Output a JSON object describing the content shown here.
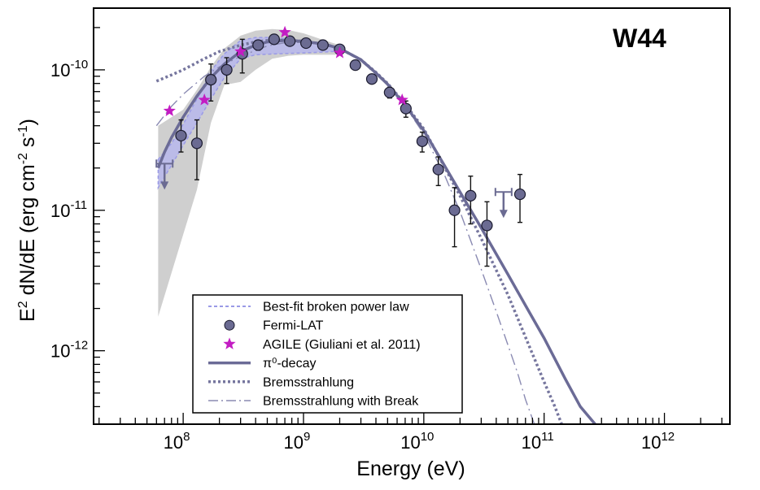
{
  "chart_data": {
    "type": "scatter",
    "title": "W44",
    "xlabel": "Energy (eV)",
    "ylabel": {
      "base": "E",
      "sup1": "2",
      "mid": " dN/dE (erg cm",
      "sup2": "-2",
      "gap": " s",
      "sup3": "-1",
      "end": ")"
    },
    "x_scale": "log",
    "y_scale": "log",
    "xlim": [
      18000000.0,
      3500000000000.0
    ],
    "ylim": [
      3e-13,
      2.75e-10
    ],
    "x_ticks": [
      {
        "value": 100000000.0,
        "base": "10",
        "exp": "8"
      },
      {
        "value": 1000000000.0,
        "base": "10",
        "exp": "9"
      },
      {
        "value": 10000000000.0,
        "base": "10",
        "exp": "10"
      },
      {
        "value": 100000000000.0,
        "base": "10",
        "exp": "11"
      },
      {
        "value": 1000000000000.0,
        "base": "10",
        "exp": "12"
      }
    ],
    "y_ticks": [
      {
        "value": 1e-10,
        "base": "10",
        "exp": "-10"
      },
      {
        "value": 1e-11,
        "base": "10",
        "exp": "-11"
      },
      {
        "value": 1e-12,
        "base": "10",
        "exp": "-12"
      }
    ],
    "legend": {
      "position": "bottom-left",
      "entries": [
        {
          "label": "Best-fit broken power law",
          "style": "band"
        },
        {
          "label": "Fermi-LAT",
          "style": "circle"
        },
        {
          "label": "AGILE (Giuliani et al. 2011)",
          "style": "star"
        },
        {
          "label": "π⁰-decay",
          "style": "solid"
        },
        {
          "label": "Bremsstrahlung",
          "style": "dotted"
        },
        {
          "label": "Bremsstrahlung with Break",
          "style": "dashdot"
        }
      ]
    },
    "colors": {
      "fermi": "#6b6b92",
      "agile": "#c31cc3",
      "pion": "#6b6b96",
      "brems": "#76769e",
      "brems_break": "#8a8ab2",
      "band": "#b4b4f0",
      "gray_band": "#cfcfcf"
    },
    "series": [
      {
        "name": "Fermi-LAT",
        "kind": "points",
        "points": [
          {
            "x": 96000000.0,
            "y": 3.4e-11,
            "ylo": 2.6e-11,
            "yhi": 4.4e-11
          },
          {
            "x": 130000000.0,
            "y": 3e-11,
            "ylo": 1.65e-11,
            "yhi": 4.4e-11
          },
          {
            "x": 170000000.0,
            "y": 8.5e-11,
            "ylo": 6e-11,
            "yhi": 1.1e-10
          },
          {
            "x": 230000000.0,
            "y": 1e-10,
            "ylo": 8e-11,
            "yhi": 1.22e-10
          },
          {
            "x": 310000000.0,
            "y": 1.3e-10,
            "ylo": 9.5e-11,
            "yhi": 1.65e-10
          },
          {
            "x": 420000000.0,
            "y": 1.5e-10,
            "ylo": 1.38e-10,
            "yhi": 1.62e-10
          },
          {
            "x": 570000000.0,
            "y": 1.65e-10,
            "ylo": 1.55e-10,
            "yhi": 1.75e-10
          },
          {
            "x": 770000000.0,
            "y": 1.6e-10,
            "ylo": 1.5e-10,
            "yhi": 1.7e-10
          },
          {
            "x": 1050000000.0,
            "y": 1.55e-10,
            "ylo": 1.45e-10,
            "yhi": 1.65e-10
          },
          {
            "x": 1450000000.0,
            "y": 1.5e-10,
            "ylo": 1.4e-10,
            "yhi": 1.6e-10
          },
          {
            "x": 2000000000.0,
            "y": 1.4e-10,
            "ylo": 1.3e-10,
            "yhi": 1.5e-10
          },
          {
            "x": 2700000000.0,
            "y": 1.08e-10,
            "ylo": 1e-10,
            "yhi": 1.16e-10
          },
          {
            "x": 3700000000.0,
            "y": 8.6e-11,
            "ylo": 8e-11,
            "yhi": 9.2e-11
          },
          {
            "x": 5200000000.0,
            "y": 6.9e-11,
            "ylo": 6.3e-11,
            "yhi": 7.5e-11
          },
          {
            "x": 7100000000.0,
            "y": 5.3e-11,
            "ylo": 4.6e-11,
            "yhi": 6e-11
          },
          {
            "x": 9700000000.0,
            "y": 3.1e-11,
            "ylo": 2.6e-11,
            "yhi": 3.6e-11
          },
          {
            "x": 13200000000.0,
            "y": 1.95e-11,
            "ylo": 1.5e-11,
            "yhi": 2.4e-11
          },
          {
            "x": 18000000000.0,
            "y": 1e-11,
            "ylo": 5.5e-12,
            "yhi": 1.45e-11
          },
          {
            "x": 24500000000.0,
            "y": 1.27e-11,
            "ylo": 8e-12,
            "yhi": 1.75e-11
          },
          {
            "x": 33500000000.0,
            "y": 7.8e-12,
            "ylo": 4e-12,
            "yhi": 1.15e-11
          },
          {
            "x": 63000000000.0,
            "y": 1.3e-11,
            "ylo": 8.2e-12,
            "yhi": 1.8e-11
          }
        ]
      },
      {
        "name": "AGILE (Giuliani et al. 2011)",
        "kind": "stars",
        "points": [
          {
            "x": 77000000.0,
            "y": 5.1e-11
          },
          {
            "x": 150000000.0,
            "y": 6.1e-11
          },
          {
            "x": 300000000.0,
            "y": 1.35e-10
          },
          {
            "x": 700000000.0,
            "y": 1.85e-10
          },
          {
            "x": 2000000000.0,
            "y": 1.32e-10
          },
          {
            "x": 6600000000.0,
            "y": 6.1e-11
          }
        ]
      },
      {
        "name": "Fermi-LAT upper limits",
        "kind": "upper_limits",
        "points": [
          {
            "x": 70000000.0,
            "y": 2.15e-11
          },
          {
            "x": 46000000000.0,
            "y": 1.35e-11
          }
        ]
      },
      {
        "name": "π⁰-decay",
        "kind": "line",
        "x": [
          62000000.0,
          70000000.0,
          80000000.0,
          100000000.0,
          130000000.0,
          170000000.0,
          220000000.0,
          300000000.0,
          400000000.0,
          500000000.0,
          700000000.0,
          1000000000.0,
          1500000000.0,
          2000000000.0,
          3000000000.0,
          4000000000.0,
          5000000000.0,
          7000000000.0,
          10000000000.0,
          15000000000.0,
          20000000000.0,
          30000000000.0,
          50000000000.0,
          70000000000.0,
          100000000000.0,
          150000000000.0,
          200000000000.0,
          270000000000.0
        ],
        "y": [
          2e-11,
          2.6e-11,
          3.3e-11,
          4.6e-11,
          6.5e-11,
          8.8e-11,
          1.1e-10,
          1.35e-10,
          1.5e-10,
          1.58e-10,
          1.62e-10,
          1.6e-10,
          1.52e-10,
          1.42e-10,
          1.18e-10,
          9.5e-11,
          7.9e-11,
          5.6e-11,
          3.7e-11,
          2.05e-11,
          1.35e-11,
          7.5e-12,
          3.5e-12,
          2.1e-12,
          1.23e-12,
          6.3e-13,
          4e-13,
          2.95e-13
        ]
      },
      {
        "name": "Bremsstrahlung",
        "kind": "line",
        "x": [
          60000000.0,
          80000000.0,
          100000000.0,
          150000000.0,
          200000000.0,
          300000000.0,
          400000000.0,
          500000000.0,
          700000000.0,
          1000000000.0,
          1500000000.0,
          2000000000.0,
          3000000000.0,
          4000000000.0,
          5000000000.0,
          7000000000.0,
          10000000000.0,
          15000000000.0,
          20000000000.0,
          30000000000.0,
          50000000000.0,
          70000000000.0,
          100000000000.0,
          120000000000.0,
          140000000000.0
        ],
        "y": [
          8.3e-11,
          9.2e-11,
          1e-10,
          1.2e-10,
          1.35e-10,
          1.5e-10,
          1.58e-10,
          1.62e-10,
          1.63e-10,
          1.6e-10,
          1.52e-10,
          1.42e-10,
          1.18e-10,
          9.6e-11,
          8e-11,
          5.7e-11,
          3.8e-11,
          2e-11,
          1.27e-11,
          6.3e-12,
          2.5e-12,
          1.25e-12,
          6e-13,
          4.2e-13,
          3e-13
        ]
      },
      {
        "name": "Bremsstrahlung with Break",
        "kind": "line",
        "x": [
          60000000.0,
          80000000.0,
          100000000.0,
          150000000.0,
          200000000.0,
          300000000.0,
          500000000.0,
          700000000.0,
          1000000000.0,
          1500000000.0,
          2000000000.0,
          3000000000.0,
          5000000000.0,
          7000000000.0,
          10000000000.0,
          15000000000.0,
          20000000000.0,
          30000000000.0,
          40000000000.0,
          50000000000.0,
          60000000000.0,
          70000000000.0,
          83000000000.0
        ],
        "y": [
          4e-11,
          5.5e-11,
          6.7e-11,
          9e-11,
          1.05e-10,
          1.25e-10,
          1.48e-10,
          1.56e-10,
          1.57e-10,
          1.5e-10,
          1.4e-10,
          1.16e-10,
          7.8e-11,
          5.5e-11,
          3.5e-11,
          1.75e-11,
          9.8e-12,
          3.8e-12,
          1.9e-12,
          1.1e-12,
          7e-13,
          4.5e-13,
          3e-13
        ]
      },
      {
        "name": "Best-fit broken power law",
        "kind": "band",
        "x": [
          62000000.0,
          80000000.0,
          100000000.0,
          130000000.0,
          170000000.0,
          220000000.0,
          300000000.0,
          400000000.0,
          600000000.0,
          1000000000.0,
          1500000000.0,
          2000000000.0
        ],
        "lower": [
          1.45e-11,
          2.1e-11,
          2.9e-11,
          4.2e-11,
          6.2e-11,
          8.8e-11,
          1.2e-10,
          1.28e-10,
          1.3e-10,
          1.32e-10,
          1.34e-10,
          1.36e-10
        ],
        "upper": [
          2.3e-11,
          3e-11,
          4.1e-11,
          6.2e-11,
          9.8e-11,
          1.3e-10,
          1.62e-10,
          1.7e-10,
          1.7e-10,
          1.6e-10,
          1.5e-10,
          1.45e-10
        ]
      },
      {
        "name": "Gray uncertainty band",
        "kind": "band",
        "x": [
          62000000.0,
          100000000.0,
          130000000.0,
          170000000.0,
          220000000.0,
          300000000.0,
          400000000.0,
          550000000.0,
          750000000.0,
          1000000000.0,
          1500000000.0,
          2000000000.0
        ],
        "lower": [
          1.75e-12,
          6.7e-12,
          1.4e-11,
          4.2e-11,
          7.8e-11,
          8.2e-11,
          1e-10,
          1.2e-10,
          1.26e-10,
          1.28e-10,
          1.28e-10,
          1.28e-10
        ],
        "upper": [
          4e-11,
          5.2e-11,
          7.2e-11,
          1.05e-10,
          1.42e-10,
          1.75e-10,
          1.9e-10,
          1.95e-10,
          1.92e-10,
          1.82e-10,
          1.62e-10,
          1.5e-10
        ]
      }
    ]
  }
}
